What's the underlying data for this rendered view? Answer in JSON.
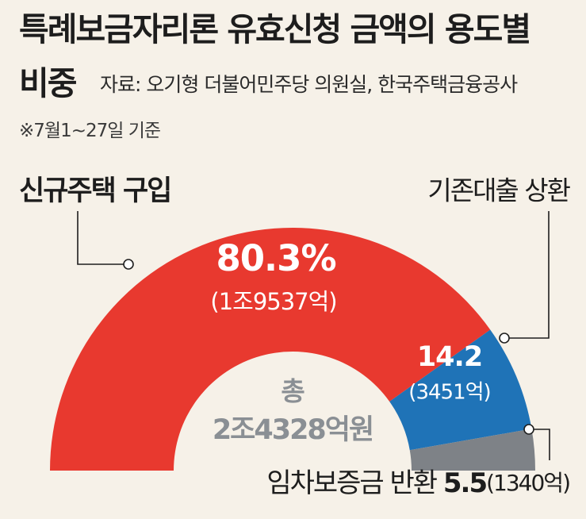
{
  "title_line1": "특례보금자리론 유효신청 금액의 용도별",
  "title_line2": "비중",
  "source": "자료: 오기형 더불어민주당 의원실, 한국주택금융공사",
  "note": "※7월1~27일 기준",
  "colors": {
    "red": "#e8392f",
    "blue": "#1f73b7",
    "gray": "#7e8287",
    "bg": "#f6f1e8"
  },
  "chart_data": {
    "type": "pie",
    "subtype": "semicircle-donut",
    "center_label_line1": "총",
    "center_label_line2": "2조4328억원",
    "slices": [
      {
        "name": "신규주택 구입",
        "value": 80.3,
        "value_label": "80.3%",
        "amount_label": "(1조9537억)",
        "color": "#e8392f"
      },
      {
        "name": "기존대출 상환",
        "value": 14.2,
        "value_label": "14.2",
        "amount_label": "(3451억)",
        "color": "#1f73b7"
      },
      {
        "name": "임차보증금 반환",
        "value": 5.5,
        "value_label": "5.5",
        "amount_label": "(1340억)",
        "color": "#7e8287"
      }
    ]
  }
}
